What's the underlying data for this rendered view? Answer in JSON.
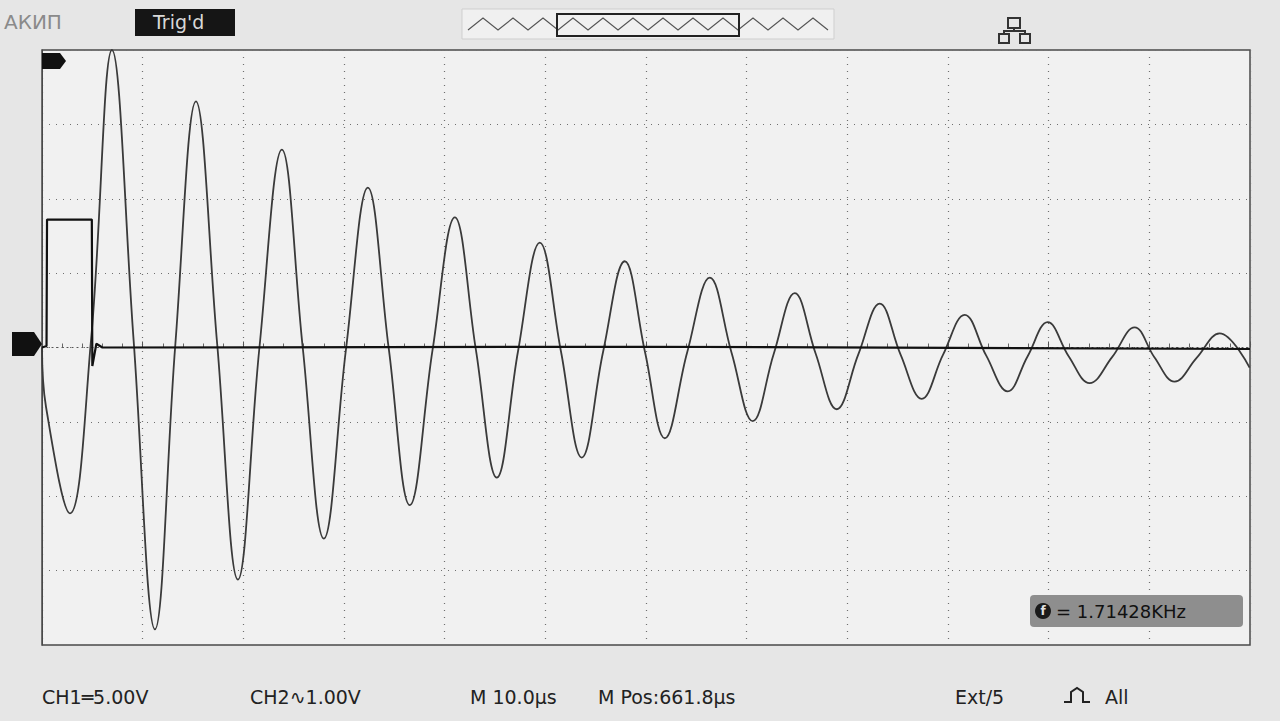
{
  "chart_data": {
    "type": "line",
    "annotations": [
      {
        "text": "АКИП"
      },
      {
        "text": "Trig'd"
      },
      {
        "text": "CH1═5.00V"
      },
      {
        "text": "CH2∿1.00V"
      },
      {
        "text": "M 10.0µs"
      },
      {
        "text": "M Pos:661.8µs"
      },
      {
        "text": "Ext/5"
      },
      {
        "text": "All"
      },
      {
        "text": "f"
      },
      {
        "text": "= 1.71428KHz"
      }
    ],
    "xlim": [
      0,
      120
    ],
    "xticks": [
      0,
      10,
      20,
      30,
      40,
      50,
      60,
      70,
      80,
      90,
      100,
      110,
      120
    ],
    "ylim": [
      -4,
      4
    ],
    "yticks": [
      -4,
      -3,
      -2,
      -1,
      0,
      1,
      2,
      3,
      4
    ],
    "grid": true,
    "tick_labels": false,
    "series": [
      {
        "color": "#3a3a3a",
        "marker": "none",
        "line_style": "smooth",
        "x": [
          0,
          0.4,
          2.78,
          4.87,
          6.95,
          9.1,
          11.22,
          13.25,
          15.29,
          17.4,
          19.46,
          21.6,
          23.83,
          25.9,
          28.0,
          30.2,
          32.37,
          34.45,
          36.54,
          38.8,
          41.01,
          43.1,
          45.18,
          47.3,
          49.45,
          51.55,
          53.62,
          55.75,
          57.89,
          59.9,
          61.87,
          64.1,
          66.34,
          68.5,
          70.61,
          72.7,
          74.78,
          76.85,
          78.95,
          81.1,
          83.22,
          85.3,
          87.39,
          89.5,
          91.66,
          93.8,
          95.93,
          97.9,
          99.9,
          102.0,
          104.07,
          106.3,
          108.54,
          110.5,
          112.51,
          114.7,
          116.98,
          119.96
        ],
        "values": [
          0,
          -0.8,
          -2.23,
          0.1,
          4.0,
          0.1,
          -3.79,
          0.05,
          3.31,
          0.05,
          -3.12,
          0,
          2.66,
          0,
          -2.57,
          -0.02,
          2.15,
          -0.02,
          -2.12,
          -0.03,
          1.75,
          -0.03,
          -1.75,
          -0.04,
          1.41,
          -0.05,
          -1.48,
          -0.05,
          1.16,
          -0.06,
          -1.22,
          -0.06,
          0.94,
          -0.07,
          -0.99,
          -0.08,
          0.73,
          -0.08,
          -0.83,
          -0.09,
          0.59,
          -0.1,
          -0.69,
          -0.1,
          0.44,
          -0.11,
          -0.59,
          -0.12,
          0.34,
          -0.12,
          -0.48,
          -0.13,
          0.27,
          -0.13,
          -0.46,
          -0.14,
          0.19,
          -0.27
        ]
      },
      {
        "color": "#111111",
        "marker": "none",
        "line_style": "solid",
        "x": [
          0,
          0.45,
          0.5,
          4.95,
          5.0,
          5.4,
          6.0,
          60,
          120
        ],
        "values": [
          0,
          0.02,
          1.72,
          1.72,
          -0.25,
          0.05,
          0,
          0.01,
          -0.02
        ]
      }
    ]
  }
}
